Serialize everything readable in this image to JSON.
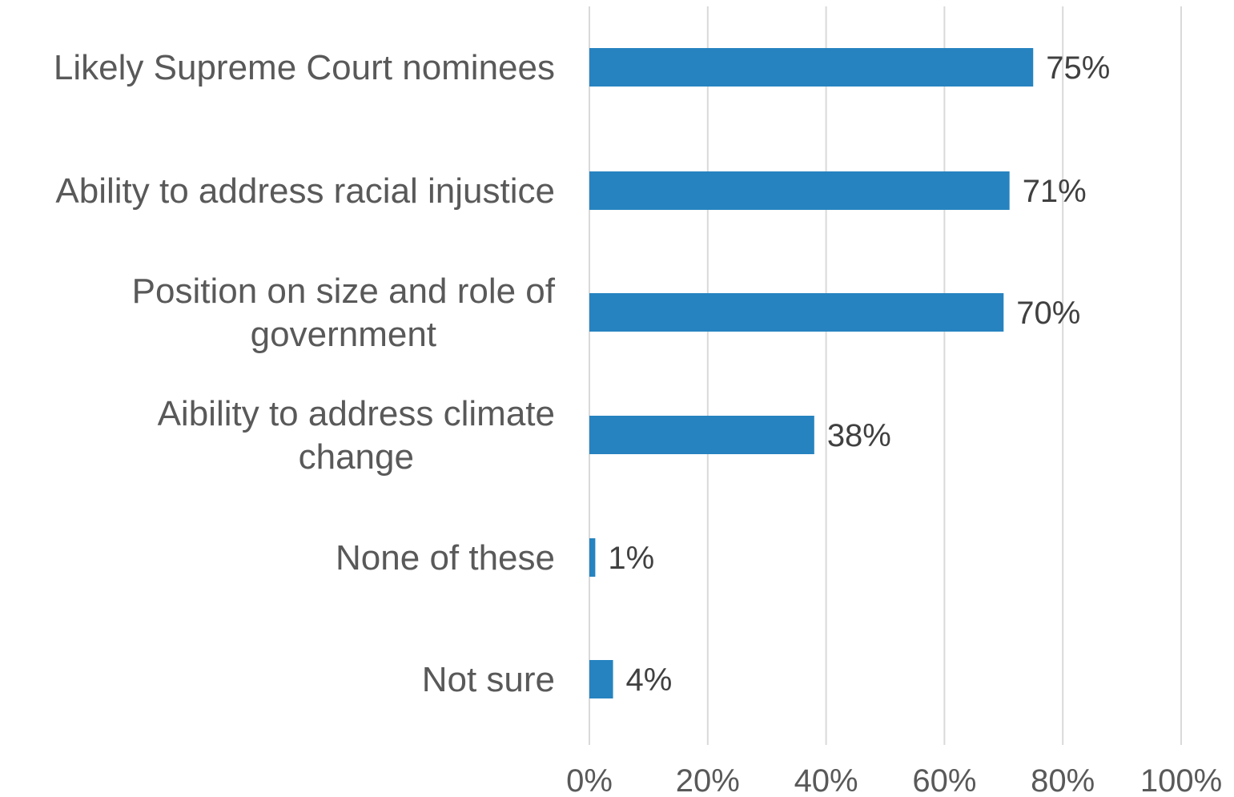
{
  "chart_data": {
    "type": "bar",
    "orientation": "horizontal",
    "categories": [
      "Likely Supreme Court nominees",
      "Ability to address racial injustice",
      "Position on size and role of government",
      "Aibility to address climate change",
      "None of these",
      "Not sure"
    ],
    "category_lines": [
      [
        "Likely Supreme Court nominees"
      ],
      [
        "Ability to address racial injustice"
      ],
      [
        "Position on size and role of",
        "government"
      ],
      [
        "Aibility to address climate",
        "change"
      ],
      [
        "None of these"
      ],
      [
        "Not sure"
      ]
    ],
    "values": [
      75,
      71,
      70,
      38,
      1,
      4
    ],
    "data_labels": [
      "75%",
      "71%",
      "70%",
      "38%",
      "1%",
      "4%"
    ],
    "xlim": [
      0,
      100
    ],
    "ticks": [
      0,
      20,
      40,
      60,
      80,
      100
    ],
    "tick_labels": [
      "0%",
      "20%",
      "40%",
      "60%",
      "80%",
      "100%"
    ],
    "grid": "vertical",
    "legend": "none",
    "bar_color": "#2683c0",
    "gridline_color": "#d9d9d9",
    "label_color": "#595959",
    "data_label_color": "#404040"
  }
}
